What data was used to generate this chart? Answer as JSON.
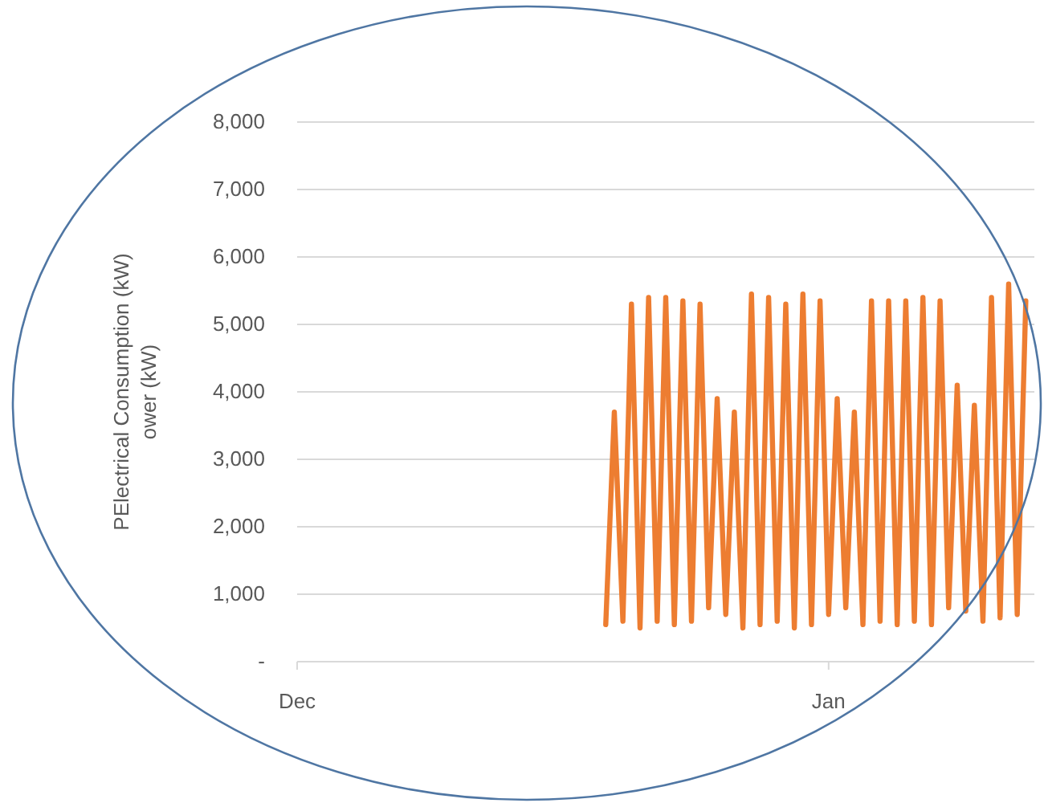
{
  "chart_data": {
    "type": "line",
    "ylabel": "PElectrical Consumption (kW)\nower (kW)",
    "categories": [
      "Dec",
      null,
      null,
      null,
      null,
      null,
      null,
      null,
      null,
      null,
      null,
      null,
      null,
      null,
      null,
      null,
      null,
      null,
      null,
      null,
      null,
      null,
      null,
      null,
      null,
      null,
      null,
      null,
      null,
      null,
      null,
      null,
      null,
      null,
      null,
      null,
      null,
      null,
      null,
      null,
      null,
      null,
      null,
      null,
      null,
      null,
      null,
      null,
      null,
      null,
      null,
      null,
      null,
      null,
      null,
      null,
      null,
      null,
      null,
      null,
      null,
      null,
      "Jan",
      null,
      null,
      null,
      null,
      null,
      null,
      null,
      null,
      null,
      null,
      null,
      null,
      null,
      null,
      null,
      null,
      null,
      null,
      null,
      null,
      null,
      null,
      null,
      null
    ],
    "ylim": [
      0,
      8000
    ],
    "yticks": [
      {
        "value": 0,
        "label": "-"
      },
      {
        "value": 1000,
        "label": "1,000"
      },
      {
        "value": 2000,
        "label": "2,000"
      },
      {
        "value": 3000,
        "label": "3,000"
      },
      {
        "value": 4000,
        "label": "4,000"
      },
      {
        "value": 5000,
        "label": "5,000"
      },
      {
        "value": 6000,
        "label": "6,000"
      },
      {
        "value": 7000,
        "label": "7,000"
      },
      {
        "value": 8000,
        "label": "8,000"
      }
    ],
    "grid": "y",
    "marker": "none",
    "line_style": "solid",
    "series": [
      {
        "color": "#ed7d31",
        "values": [
          null,
          null,
          null,
          null,
          null,
          null,
          null,
          null,
          null,
          null,
          null,
          null,
          null,
          null,
          null,
          null,
          null,
          null,
          null,
          null,
          null,
          null,
          null,
          null,
          null,
          null,
          null,
          null,
          null,
          null,
          null,
          null,
          null,
          null,
          null,
          null,
          550,
          3700,
          600,
          5300,
          500,
          5400,
          600,
          5400,
          550,
          5350,
          600,
          5300,
          800,
          3900,
          700,
          3700,
          500,
          5450,
          550,
          5400,
          600,
          5300,
          500,
          5450,
          550,
          5350,
          700,
          3900,
          800,
          3700,
          550,
          5350,
          600,
          5350,
          550,
          5350,
          600,
          5400,
          550,
          5350,
          800,
          4100,
          750,
          3800,
          600,
          5400,
          650,
          5600,
          700,
          5350,
          null
        ]
      }
    ]
  }
}
